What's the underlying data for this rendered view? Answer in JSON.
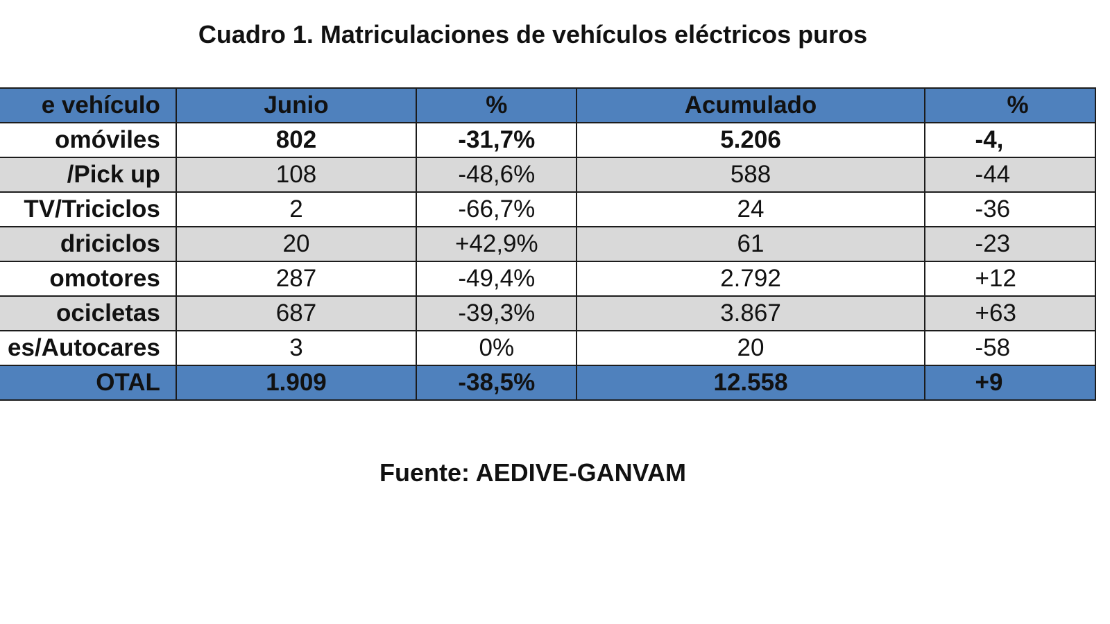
{
  "title": "Cuadro 1. Matriculaciones de vehículos eléctricos puros",
  "table": {
    "headers": [
      "e vehículo",
      "Junio",
      "%",
      "Acumulado",
      "%"
    ],
    "rows": [
      {
        "name": "omóviles",
        "junio": "802",
        "pct": "-31,7%",
        "acumulado": "5.206",
        "pct_acum": "-4,"
      },
      {
        "name": "/Pick up",
        "junio": "108",
        "pct": "-48,6%",
        "acumulado": "588",
        "pct_acum": "-44"
      },
      {
        "name": "TV/Triciclos",
        "junio": "2",
        "pct": "-66,7%",
        "acumulado": "24",
        "pct_acum": "-36"
      },
      {
        "name": "driciclos",
        "junio": "20",
        "pct": "+42,9%",
        "acumulado": "61",
        "pct_acum": "-23"
      },
      {
        "name": "omotores",
        "junio": "287",
        "pct": "-49,4%",
        "acumulado": "2.792",
        "pct_acum": "+12"
      },
      {
        "name": "ocicletas",
        "junio": "687",
        "pct": "-39,3%",
        "acumulado": "3.867",
        "pct_acum": "+63"
      },
      {
        "name": "es/Autocares",
        "junio": "3",
        "pct": "0%",
        "acumulado": "20",
        "pct_acum": "-58"
      }
    ],
    "total": {
      "name": "OTAL",
      "junio": "1.909",
      "pct": "-38,5%",
      "acumulado": "12.558",
      "pct_acum": "+9"
    }
  },
  "source": "Fuente: AEDIVE-GANVAM",
  "colors": {
    "header_fill": "#4f81bd",
    "stripe_gray": "#d9d9d9",
    "border": "#1c1c1c"
  }
}
